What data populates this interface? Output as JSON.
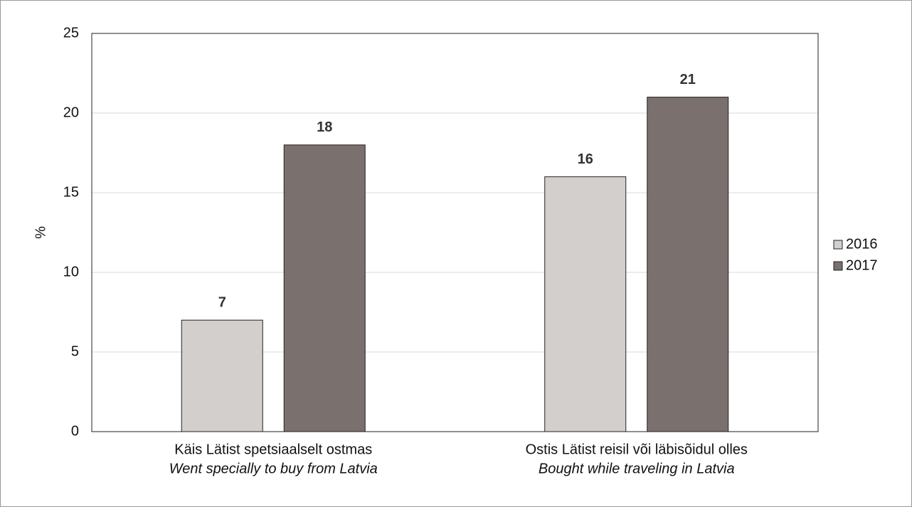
{
  "chart_data": {
    "type": "bar",
    "ylabel": "%",
    "categories": [
      [
        "Käis Lätist spetsiaalselt ostmas",
        "Went specially to buy from Latvia"
      ],
      [
        "Ostis Lätist reisil või läbisõidul olles",
        "Bought while traveling in Latvia"
      ]
    ],
    "series": [
      {
        "name": "2016",
        "color": "#d3cfcd",
        "values": [
          7,
          16
        ]
      },
      {
        "name": "2017",
        "color": "#7a706e",
        "values": [
          18,
          21
        ]
      }
    ],
    "ylim": [
      0,
      25
    ],
    "yticks": [
      0,
      5,
      10,
      15,
      20,
      25
    ],
    "grid": true,
    "legend": "right"
  }
}
